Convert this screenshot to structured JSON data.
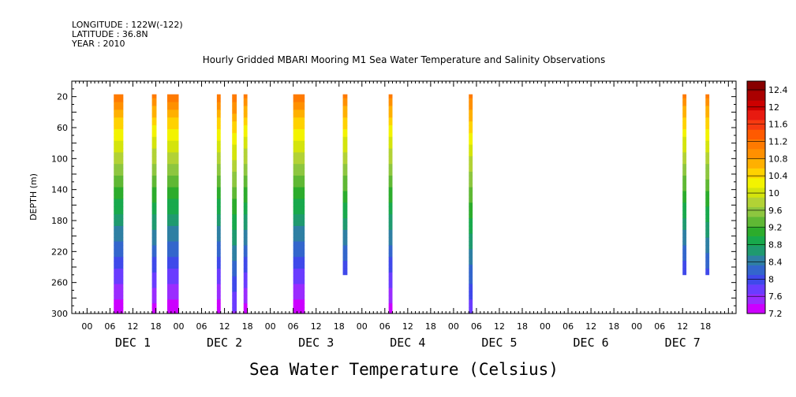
{
  "header": {
    "longitude": "LONGITUDE : 122W(-122)",
    "latitude": "LATITUDE : 36.8N",
    "year": "YEAR : 2010"
  },
  "chart_data": {
    "type": "heatmap",
    "title": "Hourly Gridded MBARI Mooring M1 Sea Water Temperature and Salinity Observations",
    "caption": "Sea Water Temperature (Celsius)",
    "ylabel": "DEPTH (m)",
    "ylim": [
      0,
      300
    ],
    "y_inverted": true,
    "y_ticks": [
      20,
      60,
      100,
      140,
      180,
      220,
      260,
      300
    ],
    "x_range_hours": [
      -4,
      170
    ],
    "x_hour_ticks": [
      0,
      6,
      12,
      18
    ],
    "x_hour_labels": [
      "00",
      "06",
      "12",
      "18"
    ],
    "days": [
      "DEC  1",
      "DEC  2",
      "DEC  3",
      "DEC  4",
      "DEC  5",
      "DEC  6",
      "DEC  7"
    ],
    "colorbar": {
      "min": 7.2,
      "max": 12.6,
      "step": 0.2,
      "labels": [
        "12.4",
        "12",
        "11.6",
        "11.2",
        "10.8",
        "10.4",
        "10",
        "9.6",
        "9.2",
        "8.8",
        "8.4",
        "8",
        "7.6",
        "7.2"
      ],
      "label_values": [
        12.4,
        12,
        11.6,
        11.2,
        10.8,
        10.4,
        10,
        9.6,
        9.2,
        8.8,
        8.4,
        8,
        7.6,
        7.2
      ]
    },
    "observations": [
      {
        "start_hour": 7,
        "end_hour": 9.5,
        "max_depth": 300,
        "surface_temp": 11.3,
        "bottom_temp": 7.2
      },
      {
        "start_hour": 17,
        "end_hour": 18.2,
        "max_depth": 300,
        "surface_temp": 11.2,
        "bottom_temp": 7.3
      },
      {
        "start_hour": 21,
        "end_hour": 24,
        "max_depth": 300,
        "surface_temp": 11.3,
        "bottom_temp": 7.2
      },
      {
        "start_hour": 34,
        "end_hour": 35,
        "max_depth": 300,
        "surface_temp": 11.3,
        "bottom_temp": 7.2
      },
      {
        "start_hour": 38,
        "end_hour": 39.2,
        "max_depth": 300,
        "surface_temp": 11.3,
        "bottom_temp": 7.6
      },
      {
        "start_hour": 41,
        "end_hour": 42,
        "max_depth": 300,
        "surface_temp": 11.2,
        "bottom_temp": 7.3
      },
      {
        "start_hour": 54,
        "end_hour": 57,
        "max_depth": 300,
        "surface_temp": 11.3,
        "bottom_temp": 7.2
      },
      {
        "start_hour": 67,
        "end_hour": 68.2,
        "max_depth": 250,
        "surface_temp": 11.2,
        "bottom_temp": 7.9
      },
      {
        "start_hour": 79,
        "end_hour": 80,
        "max_depth": 300,
        "surface_temp": 11.2,
        "bottom_temp": 7.3
      },
      {
        "start_hour": 100,
        "end_hour": 101,
        "max_depth": 300,
        "surface_temp": 11.2,
        "bottom_temp": 7.7
      },
      {
        "start_hour": 156,
        "end_hour": 157,
        "max_depth": 250,
        "surface_temp": 11.2,
        "bottom_temp": 7.9
      },
      {
        "start_hour": 162,
        "end_hour": 163,
        "max_depth": 250,
        "surface_temp": 11.2,
        "bottom_temp": 8.0
      }
    ]
  }
}
